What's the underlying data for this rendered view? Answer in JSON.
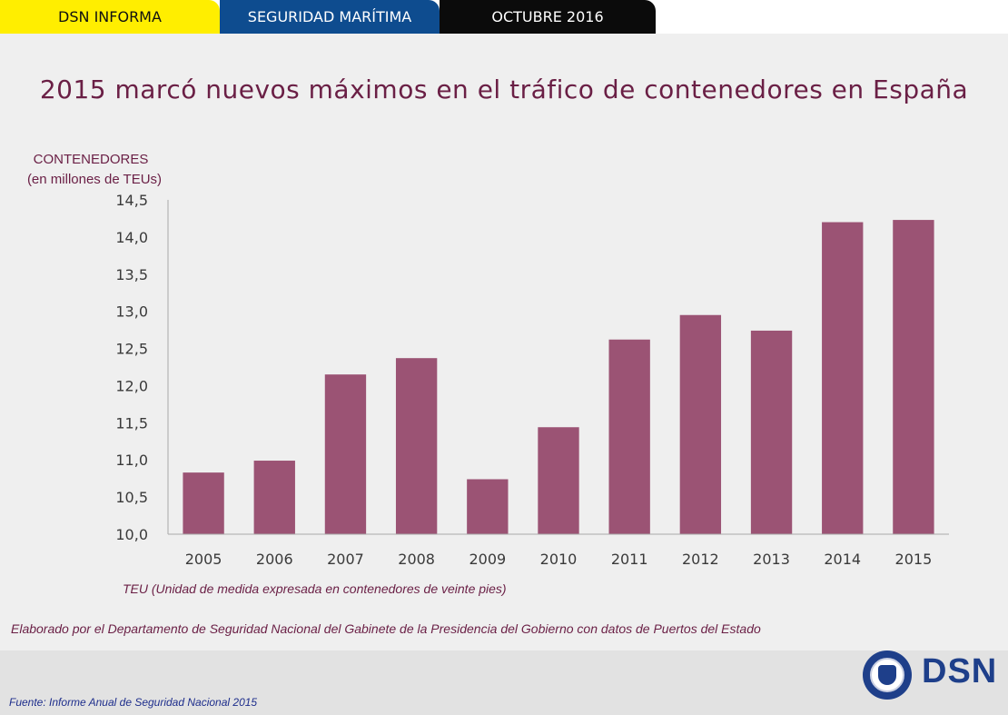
{
  "header": {
    "tabs": [
      {
        "label": "DSN INFORMA"
      },
      {
        "label": "SEGURIDAD MARÍTIMA"
      },
      {
        "label": "OCTUBRE 2016"
      }
    ]
  },
  "title": "2015 marcó nuevos máximos en el tráfico de contenedores en España",
  "chart_data": {
    "type": "bar",
    "ylabel_line1": "CONTENEDORES",
    "ylabel_line2": "(en millones de TEUs)",
    "categories": [
      "2005",
      "2006",
      "2007",
      "2008",
      "2009",
      "2010",
      "2011",
      "2012",
      "2013",
      "2014",
      "2015"
    ],
    "values": [
      10.83,
      10.99,
      12.15,
      12.37,
      10.74,
      11.44,
      12.62,
      12.95,
      12.74,
      14.2,
      14.23
    ],
    "ylim": [
      10.0,
      14.5
    ],
    "yticks": [
      "10,0",
      "10,5",
      "11,0",
      "11,5",
      "12,0",
      "12,5",
      "13,0",
      "13,5",
      "14,0",
      "14,5"
    ],
    "grid": false,
    "colors": {
      "bar": "#9b5374",
      "label": "#6a1f45",
      "ticks": "#3a3a3a",
      "axis": "#aaaaaa"
    }
  },
  "note": "TEU (Unidad de medida expresada en contenedores de veinte pies)",
  "credit": "Elaborado por el Departamento de Seguridad Nacional del Gabinete de la Presidencia del Gobierno con datos de Puertos del Estado",
  "footer": {
    "source_prefix": "Fuente:",
    "source_text": "Informe Anual de Seguridad Nacional 2015",
    "brand": "DSN"
  }
}
